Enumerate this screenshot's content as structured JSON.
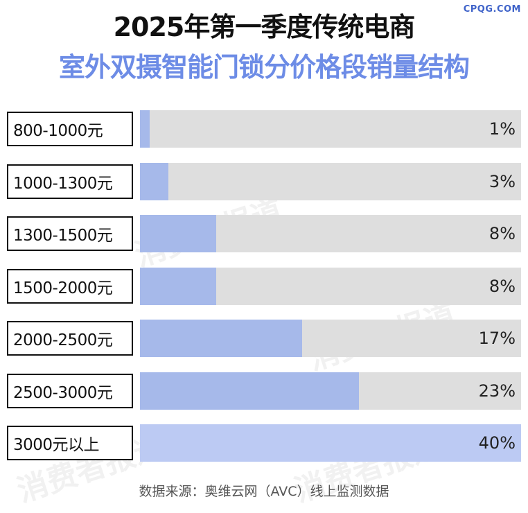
{
  "header": {
    "logo": "CPQG.COM",
    "title": "2025年第一季度传统电商",
    "subtitle": "室外双摄智能门锁分价格段销量结构"
  },
  "watermark": "消费者报道",
  "colors": {
    "track": "#dedede",
    "fill_normal": "#a6b9ea",
    "fill_max": "#bccaf3",
    "subtitle": "#6d8ce6",
    "logo": "#3f63c9"
  },
  "chart_data": {
    "type": "bar",
    "orientation": "horizontal",
    "title": "2025年第一季度传统电商",
    "subtitle": "室外双摄智能门锁分价格段销量结构",
    "categories": [
      "800-1000元",
      "1000-1300元",
      "1300-1500元",
      "1500-2000元",
      "2000-2500元",
      "2500-3000元",
      "3000元以上"
    ],
    "values": [
      1,
      3,
      8,
      8,
      17,
      23,
      40
    ],
    "labels": [
      "1%",
      "3%",
      "8%",
      "8%",
      "17%",
      "23%",
      "40%"
    ],
    "xlim": [
      0,
      40
    ],
    "grid": false,
    "legend": "none"
  },
  "footer": {
    "source": "数据来源：奥维云网（AVC）线上监测数据"
  }
}
